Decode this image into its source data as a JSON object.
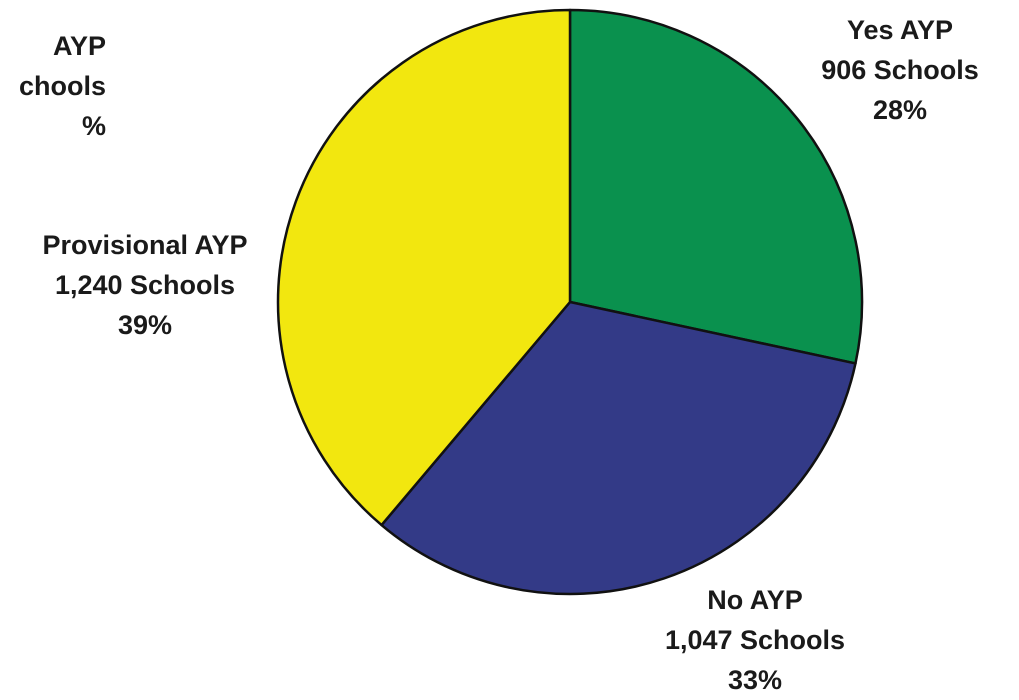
{
  "chart_data": {
    "type": "pie",
    "title": "",
    "slices": [
      {
        "label": "Yes AYP",
        "schools": "906 Schools",
        "percent_label": "28%",
        "value": 906,
        "color": "#0a914e"
      },
      {
        "label": "No AYP",
        "schools": "1,047 Schools",
        "percent_label": "33%",
        "value": 1047,
        "color": "#333a87"
      },
      {
        "label": "Provisional AYP",
        "schools": "1,240 Schools",
        "percent_label": "39%",
        "value": 1240,
        "color": "#f2e70f"
      }
    ],
    "partial_label": {
      "line1": "AYP",
      "line2": "chools",
      "line3": "%"
    }
  }
}
